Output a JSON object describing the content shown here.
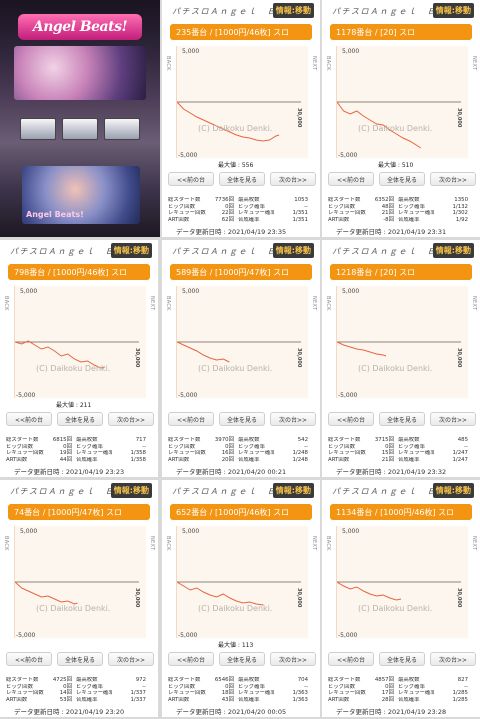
{
  "machine": {
    "logo": "Angel Beats!",
    "subtitle": "Angel Beats!"
  },
  "labels": {
    "back": "BACK",
    "next": "NEXT",
    "y_top": "5,000",
    "y_bottom": "-5,000",
    "x_end": "30,000",
    "watermark": "(C) Daikoku Denki.",
    "prev_btn": "<<前の台",
    "all_btn": "全体を見る",
    "next_btn": "次の台>>",
    "stat_keys_left": [
      "総スタート数",
      "ビッグ回数",
      "レギュラー回数",
      "ART回数"
    ],
    "stat_keys_right": [
      "最高枚数",
      "ビッグ確率",
      "レギュラー確率",
      "合成確率"
    ]
  },
  "panels": [
    {
      "name": "パチスロＡｎｇｅｌ　Ｂｅａｔ…",
      "badge": "情報:移動",
      "header": "235番台 / [1000円/46枚] スロ",
      "max_label": "最大値 : 556",
      "stats_left": [
        "7736回",
        "0回",
        "22回",
        "62回"
      ],
      "stats_right": [
        "1053",
        "--",
        "1/351",
        "1/351"
      ],
      "updated": "データ更新日時 : 2021/04/19 23:35"
    },
    {
      "name": "パチスロＡｎｇｅｌ　Ｂｅａｔ…",
      "badge": "情報:移動",
      "header": "1178番台 / [20] スロ",
      "max_label": "最大値 : 510",
      "stats_left": [
        "6352回",
        "48回",
        "21回",
        "-8回"
      ],
      "stats_right": [
        "1350",
        "1/132",
        "1/302",
        "1/92"
      ],
      "updated": "データ更新日時 : 2021/04/19 23:31"
    },
    {
      "name": "パチスロＡｎｇｅｌ　Ｂｅａｔ…",
      "badge": "情報:移動",
      "header": "798番台 / [1000円/46枚] スロ",
      "max_label": "最大値 : 211",
      "stats_left": [
        "6815回",
        "0回",
        "19回",
        "44回"
      ],
      "stats_right": [
        "717",
        "--",
        "1/358",
        "1/358"
      ],
      "updated": "データ更新日時 : 2021/04/19 23:23"
    },
    {
      "name": "パチスロＡｎｇｅｌ　Ｂｅａｔ…",
      "badge": "情報:移動",
      "header": "589番台 / [1000円/47枚] スロ",
      "max_label": "",
      "stats_left": [
        "3970回",
        "0回",
        "16回",
        "20回"
      ],
      "stats_right": [
        "542",
        "--",
        "1/248",
        "1/248"
      ],
      "updated": "データ更新日時 : 2021/04/20 00:21"
    },
    {
      "name": "パチスロＡｎｇｅｌ　Ｂｅａｔ…",
      "badge": "情報:移動",
      "header": "1218番台 / [20] スロ",
      "max_label": "",
      "stats_left": [
        "3715回",
        "0回",
        "15回",
        "21回"
      ],
      "stats_right": [
        "485",
        "--",
        "1/247",
        "1/247"
      ],
      "updated": "データ更新日時 : 2021/04/19 23:32"
    },
    {
      "name": "パチスロＡｎｇｅｌ　Ｂｅａｔ…",
      "badge": "情報:移動",
      "header": "74番台 / [1000円/47枚] スロ",
      "max_label": "",
      "stats_left": [
        "4725回",
        "0回",
        "14回",
        "53回"
      ],
      "stats_right": [
        "972",
        "--",
        "1/337",
        "1/337"
      ],
      "updated": "データ更新日時 : 2021/04/19 23:20"
    },
    {
      "name": "パチスロＡｎｇｅｌ　Ｂｅａｔ…",
      "badge": "情報:移動",
      "header": "652番台 / [1000円/46枚] スロ",
      "max_label": "最大値 : 113",
      "stats_left": [
        "6546回",
        "0回",
        "18回",
        "43回"
      ],
      "stats_right": [
        "704",
        "--",
        "1/363",
        "1/363"
      ],
      "updated": "データ更新日時 : 2021/04/20 00:05"
    },
    {
      "name": "パチスロＡｎｇｅｌ　Ｂｅａｔ…",
      "badge": "情報:移動",
      "header": "1134番台 / [1000円/46枚] スロ",
      "max_label": "",
      "stats_left": [
        "4857回",
        "0回",
        "17回",
        "28回"
      ],
      "stats_right": [
        "827",
        "--",
        "1/285",
        "1/285"
      ],
      "updated": "データ更新日時 : 2021/04/19 23:28"
    }
  ],
  "chart_data": [
    {
      "type": "line",
      "ylim": [
        -5000,
        5000
      ],
      "xlim": [
        0,
        30000
      ],
      "color": "#e7653d",
      "x": [
        0,
        500,
        1000,
        1500,
        2000,
        2500,
        3000,
        3500,
        4000,
        4500,
        5000,
        5500,
        6000,
        6500,
        7000,
        7500,
        7736
      ],
      "y": [
        0,
        -700,
        -1100,
        -1500,
        -1800,
        -2100,
        -2400,
        -2700,
        -3000,
        -3300,
        -3500,
        -3600,
        -3800,
        -3900,
        -3800,
        -3400,
        -3300
      ]
    },
    {
      "type": "line",
      "ylim": [
        -5000,
        5000
      ],
      "xlim": [
        0,
        30000
      ],
      "color": "#e7653d",
      "x": [
        0,
        500,
        1000,
        1500,
        2000,
        2500,
        3000,
        3500,
        4000,
        4500,
        5000,
        5500,
        6000,
        6352
      ],
      "y": [
        0,
        -900,
        -1200,
        -900,
        -1400,
        -1800,
        -2200,
        -2300,
        -2800,
        -3200,
        -3600,
        -3900,
        -4300,
        -4600
      ]
    },
    {
      "type": "line",
      "ylim": [
        -5000,
        5000
      ],
      "xlim": [
        0,
        30000
      ],
      "color": "#e7653d",
      "x": [
        0,
        500,
        1000,
        1500,
        2000,
        2500,
        3000,
        3500,
        4000,
        4500,
        5000,
        5500,
        6000,
        6500,
        6815
      ],
      "y": [
        0,
        -200,
        100,
        -300,
        -700,
        -500,
        -900,
        -1400,
        -1200,
        -1700,
        -2000,
        -1900,
        -2300,
        -2600,
        -2500
      ]
    },
    {
      "type": "line",
      "ylim": [
        -5000,
        5000
      ],
      "xlim": [
        0,
        30000
      ],
      "color": "#e7653d",
      "x": [
        0,
        500,
        1000,
        1500,
        2000,
        2500,
        3000,
        3500,
        3970
      ],
      "y": [
        0,
        -300,
        -600,
        -900,
        -1300,
        -1600,
        -1800,
        -1700,
        -2000
      ]
    },
    {
      "type": "line",
      "ylim": [
        -5000,
        5000
      ],
      "xlim": [
        0,
        30000
      ],
      "color": "#e7653d",
      "x": [
        0,
        500,
        1000,
        1500,
        2000,
        2500,
        3000,
        3500,
        3715
      ],
      "y": [
        0,
        -300,
        -500,
        -700,
        -800,
        -1000,
        -1200,
        -1300,
        -1400
      ]
    },
    {
      "type": "line",
      "ylim": [
        -5000,
        5000
      ],
      "xlim": [
        0,
        30000
      ],
      "color": "#e7653d",
      "x": [
        0,
        500,
        1000,
        1500,
        2000,
        2500,
        3000,
        3500,
        4000,
        4500,
        4725
      ],
      "y": [
        0,
        -600,
        -900,
        -1200,
        -1500,
        -1400,
        -1700,
        -2000,
        -1900,
        -2200,
        -2100
      ]
    },
    {
      "type": "line",
      "ylim": [
        -5000,
        5000
      ],
      "xlim": [
        0,
        30000
      ],
      "color": "#e7653d",
      "x": [
        0,
        500,
        1000,
        1500,
        2000,
        2500,
        3000,
        3500,
        4000,
        4500,
        5000,
        5500,
        6000,
        6546
      ],
      "y": [
        0,
        -400,
        -800,
        -600,
        -1000,
        -1300,
        -1500,
        -1200,
        -1600,
        -1900,
        -2100,
        -2000,
        -2200,
        -2300
      ]
    },
    {
      "type": "line",
      "ylim": [
        -5000,
        5000
      ],
      "xlim": [
        0,
        30000
      ],
      "color": "#e7653d",
      "x": [
        0,
        500,
        1000,
        1500,
        2000,
        2500,
        3000,
        3500,
        4000,
        4500,
        4857
      ],
      "y": [
        0,
        -400,
        -700,
        -500,
        -900,
        -1200,
        -1400,
        -1300,
        -1600,
        -1800,
        -1700
      ]
    }
  ]
}
